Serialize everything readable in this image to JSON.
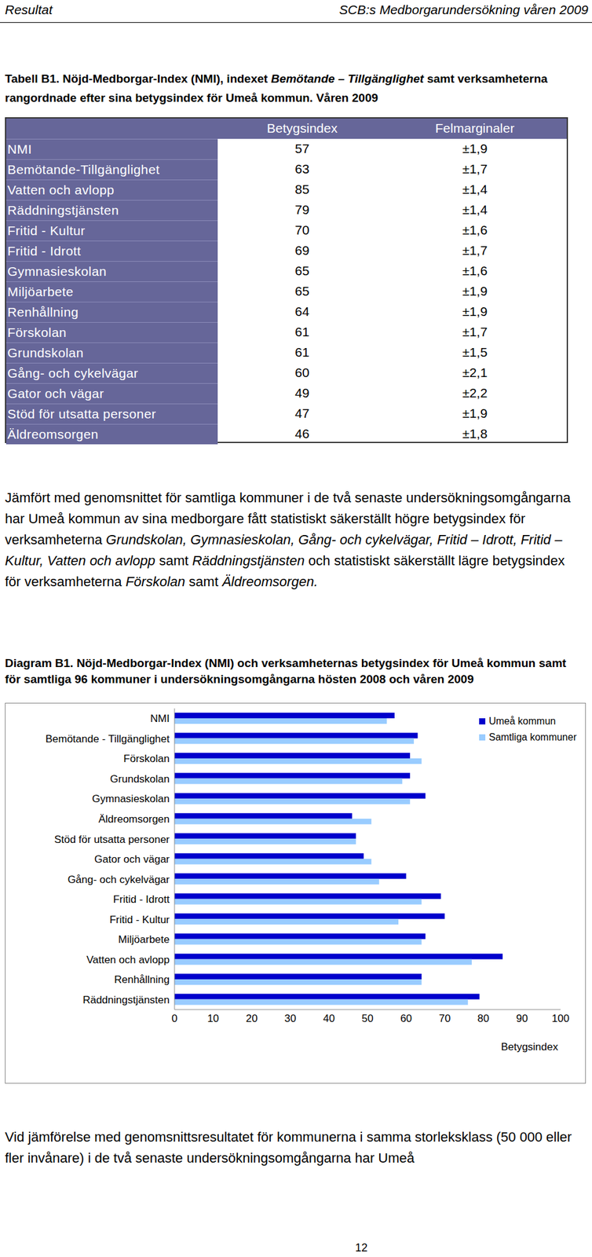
{
  "header": {
    "left": "Resultat",
    "right": "SCB:s Medborgarundersökning våren 2009"
  },
  "table_title": [
    {
      "text": "Tabell B1. Nöjd-Medborgar-Index (NMI), indexet ",
      "italic": false
    },
    {
      "text": "Bemötande – Tillgänglighet",
      "italic": true
    },
    {
      "text": " samt verksamheterna rangordnade efter sina betygsindex för Umeå kommun. Våren 2009",
      "italic": false
    }
  ],
  "table": {
    "columns": [
      "Betygsindex",
      "Felmarginaler"
    ],
    "rows": [
      [
        "NMI",
        57,
        "±1,9"
      ],
      [
        "Bemötande-Tillgänglighet",
        63,
        "±1,7"
      ],
      [
        "Vatten och avlopp",
        85,
        "±1,4"
      ],
      [
        "Räddningstjänsten",
        79,
        "±1,4"
      ],
      [
        "Fritid - Kultur",
        70,
        "±1,6"
      ],
      [
        "Fritid - Idrott",
        69,
        "±1,7"
      ],
      [
        "Gymnasieskolan",
        65,
        "±1,6"
      ],
      [
        "Miljöarbete",
        65,
        "±1,9"
      ],
      [
        "Renhållning",
        64,
        "±1,9"
      ],
      [
        "Förskolan",
        61,
        "±1,7"
      ],
      [
        "Grundskolan",
        61,
        "±1,5"
      ],
      [
        "Gång- och cykelvägar",
        60,
        "±2,1"
      ],
      [
        "Gator och vägar",
        49,
        "±2,2"
      ],
      [
        "Stöd för utsatta personer",
        47,
        "±1,9"
      ],
      [
        "Äldreomsorgen",
        46,
        "±1,8"
      ]
    ]
  },
  "paragraph_1": [
    {
      "text": "Jämfört med genomsnittet för samtliga kommuner i de två senaste undersökningsomgångarna har Umeå kommun av sina medborgare fått statistiskt säkerställt högre betygsindex för verksamheterna ",
      "italic": false
    },
    {
      "text": "Grundskolan, Gymnasieskolan, Gång- och cykelvägar, Fritid – Idrott, Fritid – Kultur, Vatten och avlopp",
      "italic": true
    },
    {
      "text": " samt ",
      "italic": false
    },
    {
      "text": "Räddningstjänsten",
      "italic": true
    },
    {
      "text": " och statistiskt säkerställt lägre betygsindex för verksamheterna ",
      "italic": false
    },
    {
      "text": "Förskolan",
      "italic": true
    },
    {
      "text": " samt ",
      "italic": false
    },
    {
      "text": "Äldreomsorgen.",
      "italic": true
    }
  ],
  "chart_data": {
    "type": "bar",
    "orientation": "horizontal",
    "title": "Diagram B1. Nöjd-Medborgar-Index (NMI) och verksamheternas betygsindex för Umeå kommun samt för samtliga 96 kommuner i undersökningsomgångarna hösten 2008 och våren 2009",
    "categories": [
      "NMI",
      "Bemötande - Tillgänglighet",
      "Förskolan",
      "Grundskolan",
      "Gymnasieskolan",
      "Äldreomsorgen",
      "Stöd för utsatta personer",
      "Gator och vägar",
      "Gång- och cykelvägar",
      "Fritid - Idrott",
      "Fritid - Kultur",
      "Miljöarbete",
      "Vatten och avlopp",
      "Renhållning",
      "Räddningstjänsten"
    ],
    "series": [
      {
        "name": "Umeå kommun",
        "color": "#0000cc",
        "values": [
          57,
          63,
          61,
          61,
          65,
          46,
          47,
          49,
          60,
          69,
          70,
          65,
          85,
          64,
          79
        ]
      },
      {
        "name": "Samtliga kommuner",
        "color": "#99ccff",
        "values": [
          55,
          62,
          64,
          59,
          61,
          51,
          47,
          51,
          53,
          64,
          58,
          64,
          77,
          64,
          76
        ]
      }
    ],
    "xlim": [
      0,
      100
    ],
    "xticks": [
      0,
      10,
      20,
      30,
      40,
      50,
      60,
      70,
      80,
      90,
      100
    ],
    "x_label": "Betygsindex",
    "legend": "right",
    "grid": false
  },
  "paragraph_2": "Vid jämförelse med genomsnittsresultatet för kommunerna i samma storleksklass (50 000 eller fler invånare) i de två senaste undersökningsomgångarna har Umeå",
  "page_number": "12"
}
